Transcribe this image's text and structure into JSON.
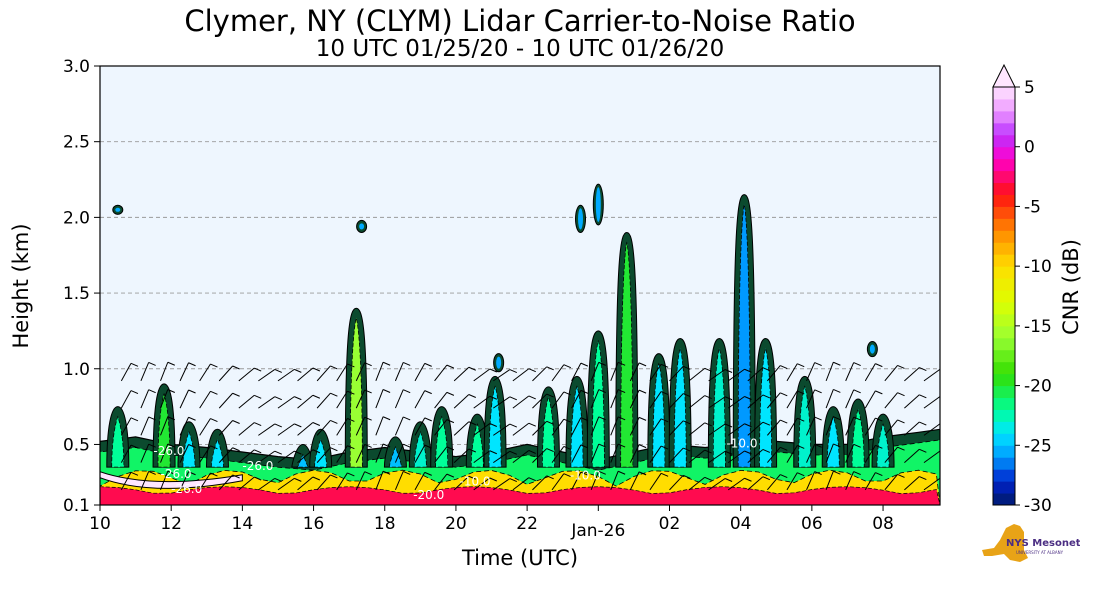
{
  "chart_data": {
    "type": "heatmap",
    "title": "Clymer, NY (CLYM) Lidar Carrier-to-Noise Ratio",
    "subtitle": "10 UTC 01/25/20 - 10 UTC 01/26/20",
    "xlabel": "Time (UTC)",
    "ylabel": "Height (km)",
    "x_ticks": [
      "10",
      "12",
      "14",
      "16",
      "18",
      "20",
      "22",
      "Jan-26",
      "02",
      "04",
      "06",
      "08"
    ],
    "x_tick_hours": [
      0,
      2,
      4,
      6,
      8,
      10,
      12,
      14,
      16,
      18,
      20,
      22
    ],
    "xlim_hours": [
      0,
      23.6
    ],
    "y_ticks": [
      "0.1",
      "0.5",
      "1.0",
      "1.5",
      "2.0",
      "2.5",
      "3.0"
    ],
    "y_tick_values": [
      0.1,
      0.5,
      1.0,
      1.5,
      2.0,
      2.5,
      3.0
    ],
    "ylim": [
      0.1,
      3.0
    ],
    "grid": "y-dashed",
    "colorbar": {
      "label": "CNR (dB)",
      "ticks": [
        "5",
        "0",
        "-5",
        "-10",
        "-15",
        "-20",
        "-25",
        "-30"
      ],
      "tick_values": [
        5,
        0,
        -5,
        -10,
        -15,
        -20,
        -25,
        -30
      ],
      "range": [
        -30,
        5
      ],
      "extend": "max"
    },
    "contour_labels": [
      "-26.0",
      "-20.0",
      "-10.0"
    ],
    "background_color": "#eef6fe",
    "boundary_layer_top_km": [
      [
        0,
        0.52
      ],
      [
        1,
        0.55
      ],
      [
        2,
        0.5
      ],
      [
        3,
        0.48
      ],
      [
        4,
        0.45
      ],
      [
        5,
        0.42
      ],
      [
        6,
        0.4
      ],
      [
        7,
        0.45
      ],
      [
        8,
        0.48
      ],
      [
        9,
        0.45
      ],
      [
        10,
        0.42
      ],
      [
        11,
        0.45
      ],
      [
        12,
        0.5
      ],
      [
        13,
        0.45
      ],
      [
        14,
        0.4
      ],
      [
        15,
        0.45
      ],
      [
        16,
        0.5
      ],
      [
        17,
        0.48
      ],
      [
        18,
        0.5
      ],
      [
        19,
        0.52
      ],
      [
        20,
        0.5
      ],
      [
        21,
        0.5
      ],
      [
        22,
        0.55
      ],
      [
        23,
        0.58
      ],
      [
        23.6,
        0.6
      ]
    ],
    "cloud_plumes": [
      {
        "hour": 0.5,
        "top_km": 0.75,
        "cnr": -22
      },
      {
        "hour": 1.8,
        "top_km": 0.9,
        "cnr": -20
      },
      {
        "hour": 2.5,
        "top_km": 0.65,
        "cnr": -24
      },
      {
        "hour": 3.3,
        "top_km": 0.6,
        "cnr": -24
      },
      {
        "hour": 5.7,
        "top_km": 0.5,
        "cnr": -25
      },
      {
        "hour": 6.2,
        "top_km": 0.6,
        "cnr": -24
      },
      {
        "hour": 7.2,
        "top_km": 1.4,
        "cnr": -16
      },
      {
        "hour": 8.3,
        "top_km": 0.55,
        "cnr": -25
      },
      {
        "hour": 9.0,
        "top_km": 0.65,
        "cnr": -23
      },
      {
        "hour": 9.6,
        "top_km": 0.75,
        "cnr": -22
      },
      {
        "hour": 10.6,
        "top_km": 0.7,
        "cnr": -22
      },
      {
        "hour": 11.1,
        "top_km": 0.95,
        "cnr": -24
      },
      {
        "hour": 12.6,
        "top_km": 0.88,
        "cnr": -22
      },
      {
        "hour": 13.4,
        "top_km": 0.95,
        "cnr": -24
      },
      {
        "hour": 14.0,
        "top_km": 1.25,
        "cnr": -22
      },
      {
        "hour": 14.8,
        "top_km": 1.9,
        "cnr": -20
      },
      {
        "hour": 15.7,
        "top_km": 1.1,
        "cnr": -24
      },
      {
        "hour": 16.3,
        "top_km": 1.2,
        "cnr": -24
      },
      {
        "hour": 17.4,
        "top_km": 1.2,
        "cnr": -23
      },
      {
        "hour": 18.1,
        "top_km": 2.15,
        "cnr": -26
      },
      {
        "hour": 18.7,
        "top_km": 1.2,
        "cnr": -24
      },
      {
        "hour": 19.8,
        "top_km": 0.95,
        "cnr": -23
      },
      {
        "hour": 20.6,
        "top_km": 0.75,
        "cnr": -24
      },
      {
        "hour": 21.3,
        "top_km": 0.8,
        "cnr": -22
      },
      {
        "hour": 22.0,
        "top_km": 0.7,
        "cnr": -23
      }
    ],
    "elevated_features": [
      {
        "hour": 0.5,
        "bottom_km": 2.02,
        "top_km": 2.08
      },
      {
        "hour": 7.35,
        "bottom_km": 1.9,
        "top_km": 1.98
      },
      {
        "hour": 11.2,
        "bottom_km": 0.98,
        "top_km": 1.1
      },
      {
        "hour": 13.5,
        "bottom_km": 1.9,
        "top_km": 2.08
      },
      {
        "hour": 14.0,
        "bottom_km": 1.95,
        "top_km": 2.22
      },
      {
        "hour": 21.7,
        "bottom_km": 1.08,
        "top_km": 1.18
      }
    ],
    "surface_layer": {
      "top_km": 0.3,
      "cnr": -10
    }
  },
  "logo": {
    "text": "NYS Mesonet",
    "subtext": "UNIVERSITY AT ALBANY"
  }
}
